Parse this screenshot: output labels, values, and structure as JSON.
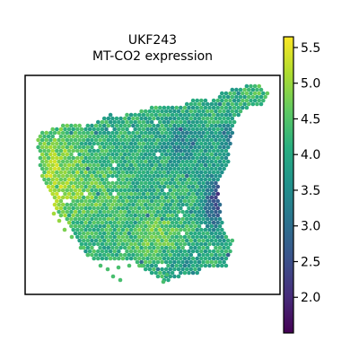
{
  "chart_data": {
    "type": "spatial-scatter",
    "title": "UKF243",
    "subtitle": "MT-CO2 expression",
    "xlabel": "",
    "ylabel": "",
    "colormap": "viridis",
    "color_range": [
      1.5,
      5.65
    ],
    "colorbar_ticks": [
      "2.0",
      "2.5",
      "3.0",
      "3.5",
      "4.0",
      "4.5",
      "5.0",
      "5.5"
    ],
    "colorbar_tick_values": [
      2.0,
      2.5,
      3.0,
      3.5,
      4.0,
      4.5,
      5.0,
      5.5
    ],
    "grid": false,
    "legend": "colorbar-right"
  }
}
